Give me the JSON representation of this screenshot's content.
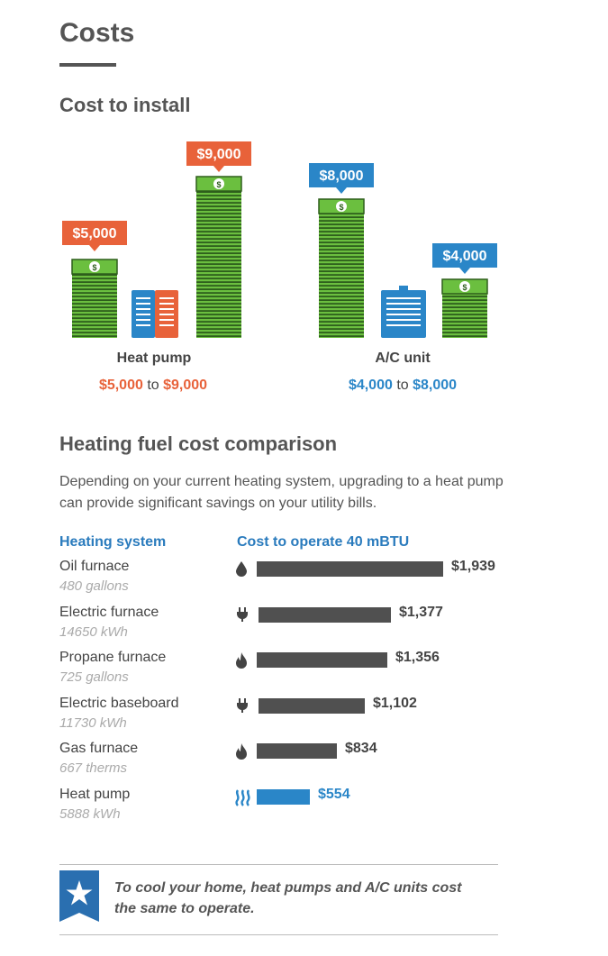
{
  "header": {
    "title": "Costs"
  },
  "install": {
    "heading": "Cost to install",
    "heat_pump": {
      "label": "Heat pump",
      "low": "$5,000",
      "high": "$9,000",
      "to": "to",
      "low_tag": "$5,000",
      "high_tag": "$9,000",
      "color": "#e8623a"
    },
    "ac_unit": {
      "label": "A/C unit",
      "low": "$4,000",
      "high": "$8,000",
      "to": "to",
      "high_tag": "$8,000",
      "low_tag": "$4,000",
      "color": "#2a86c8"
    }
  },
  "fuel": {
    "heading": "Heating fuel cost comparison",
    "intro": "Depending on your current heating system, upgrading to a heat pump can provide significant savings on your utility bills.",
    "col_system": "Heating system",
    "col_cost": "Cost to operate 40 mBTU"
  },
  "chart_data": {
    "type": "bar",
    "orientation": "horizontal",
    "categories": [
      "Oil furnace",
      "Electric furnace",
      "Propane furnace",
      "Electric baseboard",
      "Gas furnace",
      "Heat pump"
    ],
    "units": [
      "480 gallons",
      "14650 kWh",
      "725 gallons",
      "11730 kWh",
      "667 therms",
      "5888 kWh"
    ],
    "values": [
      1939,
      1377,
      1356,
      1102,
      834,
      554
    ],
    "value_labels": [
      "$1,939",
      "$1,377",
      "$1,356",
      "$1,102",
      "$834",
      "$554"
    ],
    "icons": [
      "oil-drop-icon",
      "plug-icon",
      "flame-icon",
      "plug-icon",
      "flame-icon",
      "heat-pump-waves-icon"
    ],
    "bar_color": "#505050",
    "highlight_color": "#2a86c8",
    "highlight_category": "Heat pump"
  },
  "callout": {
    "text": "To cool your home, heat pumps and A/C units cost the same to operate.",
    "icon": "star-icon",
    "color": "#2a6fb0"
  }
}
